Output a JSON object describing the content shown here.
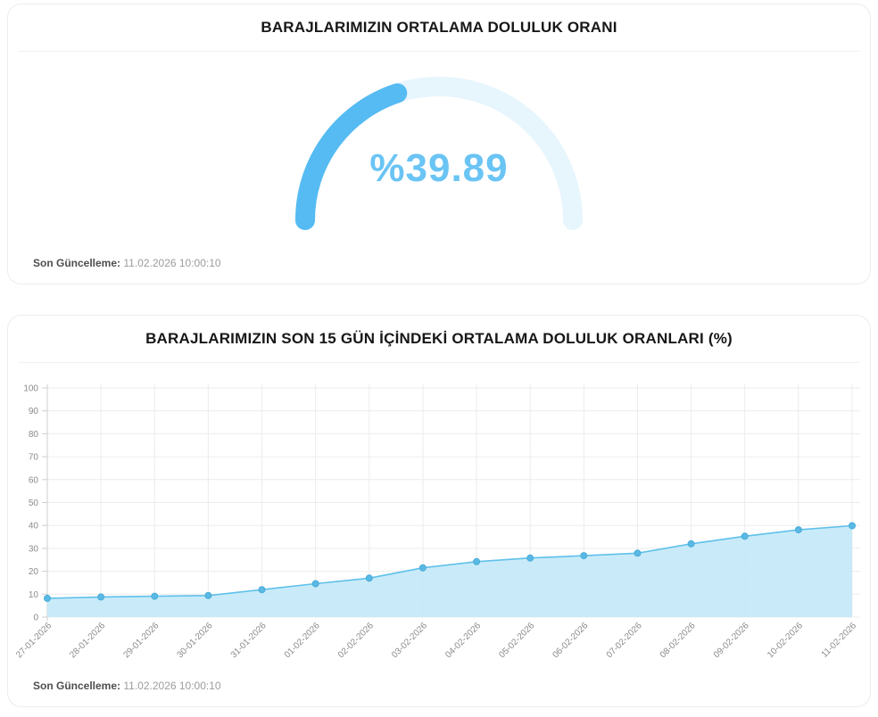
{
  "gauge_card": {
    "title": "BARAJLARIMIZIN ORTALAMA DOLULUK ORANI",
    "value_label": "%39.89",
    "footer_label": "Son Güncelleme:",
    "footer_value": "11.02.2026 10:00:10"
  },
  "trend_card": {
    "title": "BARAJLARIMIZIN SON 15 GÜN İÇİNDEKİ ORTALAMA DOLULUK ORANLARI (%)",
    "footer_label": "Son Güncelleme:",
    "footer_value": "11.02.2026 10:00:10"
  },
  "colors": {
    "gauge_arc": "#55bbf2",
    "gauge_track": "#e7f5fd",
    "gauge_value_text": "#6ac4f4",
    "trend_line": "#5fc0ea",
    "trend_fill": "#c3e9f8",
    "trend_marker": "#5ab9e4",
    "trend_marker_edge": "#49acd8",
    "grid": "#ececec",
    "axis": "#cfcfcf",
    "tick_label": "#8b8b8b"
  },
  "chart_data": [
    {
      "type": "gauge",
      "title": "BARAJLARIMIZIN ORTALAMA DOLULUK ORANI",
      "value": 39.89,
      "min": 0,
      "max": 100,
      "value_label": "%39.89"
    },
    {
      "type": "area",
      "title": "BARAJLARIMIZIN SON 15 GÜN İÇİNDEKİ ORTALAMA DOLULUK ORANLARI (%)",
      "x": [
        "27-01-2026",
        "28-01-2026",
        "29-01-2026",
        "30-01-2026",
        "31-01-2026",
        "01-02-2026",
        "02-02-2026",
        "03-02-2026",
        "04-02-2026",
        "05-02-2026",
        "06-02-2026",
        "07-02-2026",
        "08-02-2026",
        "09-02-2026",
        "10-02-2026",
        "11-02-2026"
      ],
      "values": [
        8.2,
        8.8,
        9.1,
        9.4,
        12.0,
        14.6,
        17.0,
        21.5,
        24.2,
        25.8,
        26.8,
        27.9,
        32.0,
        35.3,
        38.1,
        39.89
      ],
      "xlabel": "",
      "ylabel": "",
      "ylim": [
        0,
        100
      ],
      "yticks": [
        0,
        10,
        20,
        30,
        40,
        50,
        60,
        70,
        80,
        90,
        100
      ],
      "grid": true,
      "legend": null
    }
  ]
}
